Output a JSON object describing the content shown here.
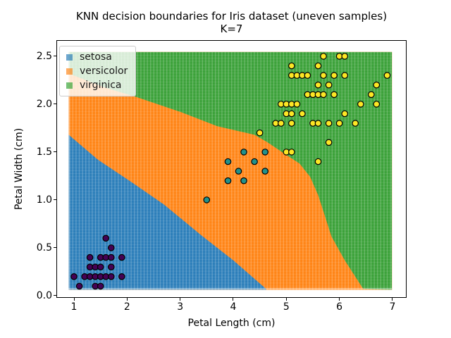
{
  "title": {
    "line1": "KNN decision boundaries for Iris dataset (uneven samples)",
    "line2": "K=7"
  },
  "axes": {
    "xlabel": "Petal Length (cm)",
    "ylabel": "Petal Width (cm)",
    "xlim": [
      0.681,
      7.253
    ],
    "ylim": [
      -0.015,
      2.661
    ],
    "x_ticks": [
      {
        "value": 1,
        "label": "1"
      },
      {
        "value": 2,
        "label": "2"
      },
      {
        "value": 3,
        "label": "3"
      },
      {
        "value": 4,
        "label": "4"
      },
      {
        "value": 5,
        "label": "5"
      },
      {
        "value": 6,
        "label": "6"
      },
      {
        "value": 7,
        "label": "7"
      }
    ],
    "y_ticks": [
      {
        "value": 0.0,
        "label": "0.0"
      },
      {
        "value": 0.5,
        "label": "0.5"
      },
      {
        "value": 1.0,
        "label": "1.0"
      },
      {
        "value": 1.5,
        "label": "1.5"
      },
      {
        "value": 2.0,
        "label": "2.0"
      },
      {
        "value": 2.5,
        "label": "2.5"
      }
    ]
  },
  "legend": {
    "position": "upper-left",
    "items": [
      {
        "label": "setosa",
        "color": "#1f77b4"
      },
      {
        "label": "versicolor",
        "color": "#ff7f0e"
      },
      {
        "label": "virginica",
        "color": "#2ca02c"
      }
    ]
  },
  "chart_data": {
    "type": "scatter",
    "title": "KNN decision boundaries for Iris dataset (uneven samples), K=7",
    "xlabel": "Petal Length (cm)",
    "ylabel": "Petal Width (cm)",
    "xlim": [
      0.681,
      7.253
    ],
    "ylim": [
      -0.015,
      2.661
    ],
    "grid": false,
    "legend_position": "upper left",
    "decision_surface": {
      "classes": [
        "setosa",
        "versicolor",
        "virginica"
      ],
      "region_colors": {
        "setosa": "#2d7fba",
        "versicolor": "#ff8517",
        "virginica": "#3ca23a"
      },
      "extent": {
        "x": [
          0.9,
          6.99
        ],
        "y": [
          0.06,
          2.545
        ]
      },
      "setosa_versicolor_boundary": [
        [
          0.9,
          1.68
        ],
        [
          1.45,
          1.42
        ],
        [
          2.1,
          1.18
        ],
        [
          2.7,
          0.95
        ],
        [
          3.4,
          0.63
        ],
        [
          4.0,
          0.37
        ],
        [
          4.62,
          0.07
        ]
      ],
      "versicolor_virginica_boundary": [
        [
          0.9,
          2.32
        ],
        [
          1.6,
          2.17
        ],
        [
          2.2,
          2.07
        ],
        [
          3.0,
          1.92
        ],
        [
          3.7,
          1.77
        ],
        [
          4.4,
          1.68
        ],
        [
          4.65,
          1.6
        ],
        [
          5.0,
          1.47
        ],
        [
          5.25,
          1.38
        ],
        [
          5.45,
          1.24
        ],
        [
          5.6,
          1.05
        ],
        [
          5.7,
          0.88
        ],
        [
          5.85,
          0.62
        ],
        [
          6.1,
          0.37
        ],
        [
          6.45,
          0.07
        ]
      ]
    },
    "series": [
      {
        "name": "setosa",
        "marker_color": "#440154",
        "marker_edge": "#000000",
        "points": [
          [
            1.6,
            0.6
          ],
          [
            1.7,
            0.5
          ],
          [
            1.3,
            0.4
          ],
          [
            1.5,
            0.4
          ],
          [
            1.6,
            0.4
          ],
          [
            1.7,
            0.4
          ],
          [
            1.9,
            0.4
          ],
          [
            1.3,
            0.3
          ],
          [
            1.4,
            0.3
          ],
          [
            1.5,
            0.3
          ],
          [
            1.7,
            0.3
          ],
          [
            1.0,
            0.2
          ],
          [
            1.2,
            0.2
          ],
          [
            1.3,
            0.2
          ],
          [
            1.4,
            0.2
          ],
          [
            1.5,
            0.2
          ],
          [
            1.6,
            0.2
          ],
          [
            1.7,
            0.2
          ],
          [
            1.9,
            0.2
          ],
          [
            1.1,
            0.1
          ],
          [
            1.4,
            0.1
          ],
          [
            1.5,
            0.1
          ]
        ]
      },
      {
        "name": "versicolor",
        "marker_color": "#21918c",
        "marker_edge": "#000000",
        "points": [
          [
            3.5,
            1.0
          ],
          [
            3.9,
            1.2
          ],
          [
            3.9,
            1.4
          ],
          [
            4.1,
            1.3
          ],
          [
            4.2,
            1.2
          ],
          [
            4.2,
            1.5
          ],
          [
            4.4,
            1.4
          ],
          [
            4.6,
            1.3
          ],
          [
            4.6,
            1.5
          ]
        ]
      },
      {
        "name": "virginica",
        "marker_color": "#fde725",
        "marker_edge": "#000000",
        "points": [
          [
            5.7,
            2.5
          ],
          [
            6.0,
            2.5
          ],
          [
            6.1,
            2.5
          ],
          [
            5.1,
            2.4
          ],
          [
            5.6,
            2.4
          ],
          [
            5.1,
            2.3
          ],
          [
            5.2,
            2.3
          ],
          [
            5.3,
            2.3
          ],
          [
            5.4,
            2.3
          ],
          [
            5.7,
            2.3
          ],
          [
            5.9,
            2.3
          ],
          [
            6.1,
            2.3
          ],
          [
            6.9,
            2.3
          ],
          [
            5.6,
            2.2
          ],
          [
            5.8,
            2.2
          ],
          [
            6.7,
            2.2
          ],
          [
            5.4,
            2.1
          ],
          [
            5.5,
            2.1
          ],
          [
            5.6,
            2.1
          ],
          [
            5.7,
            2.1
          ],
          [
            5.9,
            2.1
          ],
          [
            6.6,
            2.1
          ],
          [
            4.9,
            2.0
          ],
          [
            5.0,
            2.0
          ],
          [
            5.1,
            2.0
          ],
          [
            5.2,
            2.0
          ],
          [
            6.4,
            2.0
          ],
          [
            6.7,
            2.0
          ],
          [
            5.0,
            1.9
          ],
          [
            5.1,
            1.9
          ],
          [
            5.3,
            1.9
          ],
          [
            6.1,
            1.9
          ],
          [
            4.8,
            1.8
          ],
          [
            4.9,
            1.8
          ],
          [
            5.1,
            1.8
          ],
          [
            5.5,
            1.8
          ],
          [
            5.6,
            1.8
          ],
          [
            5.8,
            1.8
          ],
          [
            6.0,
            1.8
          ],
          [
            6.3,
            1.8
          ],
          [
            4.5,
            1.7
          ],
          [
            5.8,
            1.6
          ],
          [
            5.0,
            1.5
          ],
          [
            5.1,
            1.5
          ],
          [
            5.6,
            1.4
          ]
        ]
      }
    ]
  }
}
